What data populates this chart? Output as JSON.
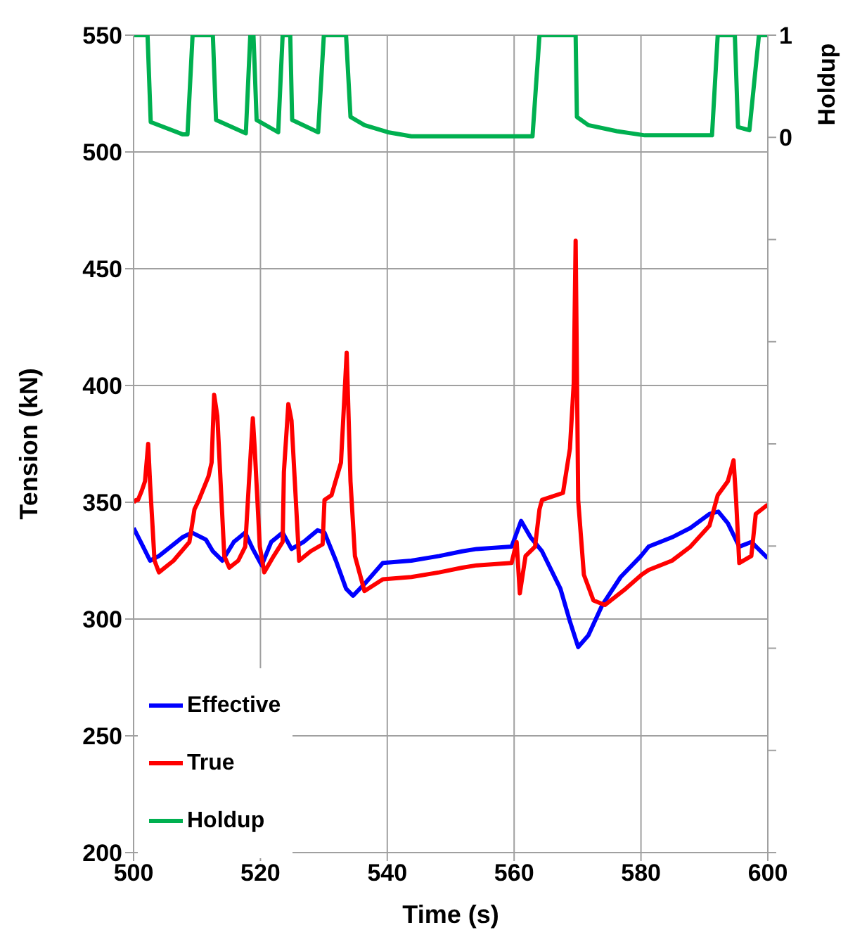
{
  "chart_data": {
    "type": "line",
    "xlabel": "Time (s)",
    "ylabel": "Tension (kN)",
    "y2label": "Holdup",
    "xlim": [
      500,
      600
    ],
    "xticks": [
      500,
      520,
      540,
      560,
      580,
      600
    ],
    "ylim": [
      200,
      550
    ],
    "yticks": [
      200,
      250,
      300,
      350,
      400,
      450,
      500,
      550
    ],
    "y2lim": [
      -7,
      1
    ],
    "y2ticks": [
      {
        "value": -7,
        "label": null
      },
      {
        "value": -6,
        "label": null
      },
      {
        "value": -5,
        "label": null
      },
      {
        "value": -4,
        "label": null
      },
      {
        "value": -3,
        "label": null
      },
      {
        "value": -2,
        "label": null
      },
      {
        "value": -1,
        "label": null
      },
      0,
      1
    ],
    "grid": true,
    "legend": "bottom left",
    "marker": "none",
    "line_style": "solid",
    "series": [
      {
        "name": "Effective",
        "color": "#0000ff",
        "x": [
          500,
          501.5,
          502.6,
          504,
          507.7,
          509.2,
          511.4,
          512.5,
          514,
          515.8,
          517.6,
          518.8,
          520.2,
          521.7,
          523.5,
          524.9,
          526.8,
          529,
          530.1,
          531.9,
          533.5,
          534.6,
          536.4,
          539.3,
          543.8,
          548.2,
          551.8,
          554.1,
          559.6,
          561.1,
          562.6,
          564.4,
          567.3,
          568.8,
          570.1,
          571.7,
          573.9,
          576.8,
          580,
          581.2,
          584.9,
          587.8,
          590.8,
          592.2,
          593.7,
          595.5,
          597.4,
          600
        ],
        "values": [
          339,
          331,
          325,
          327,
          335,
          337,
          334,
          329,
          325,
          333,
          337,
          330,
          323,
          333,
          337,
          330,
          333,
          338,
          337,
          325,
          313,
          310,
          315,
          324,
          325,
          327,
          329,
          330,
          331,
          342,
          335,
          329,
          313,
          299,
          288,
          293,
          306,
          318,
          327,
          331,
          335,
          339,
          345,
          346,
          341,
          331,
          333,
          326
        ]
      },
      {
        "name": "True",
        "color": "#ff0000",
        "x": [
          500,
          500.4,
          500.7,
          501.3,
          501.8,
          502.3,
          502.6,
          503.3,
          504,
          506.3,
          508.8,
          509.6,
          510.3,
          511.8,
          512.3,
          512.7,
          513.2,
          514.3,
          515.1,
          516.5,
          517.6,
          518.2,
          518.8,
          519.1,
          519.9,
          520.6,
          522.1,
          523.5,
          523.7,
          524.4,
          524.9,
          526.1,
          527.9,
          529.8,
          530.1,
          531.2,
          532.7,
          533.6,
          534.2,
          534.9,
          536.4,
          539.3,
          543.8,
          548.2,
          551.8,
          554.1,
          559.6,
          560.4,
          560.9,
          561.8,
          563.3,
          564,
          564.4,
          567.7,
          568.8,
          569.4,
          569.7,
          570.1,
          571,
          572.5,
          574.3,
          577.6,
          580.1,
          581.2,
          584.9,
          587.8,
          590.8,
          592.1,
          593.7,
          594.6,
          595,
          595.5,
          597.4,
          598.1,
          600
        ],
        "values": [
          350,
          351,
          351,
          355,
          359,
          375,
          358,
          325,
          320,
          325,
          333,
          347,
          351,
          361,
          367,
          396,
          387,
          327,
          322,
          325,
          331,
          359,
          386,
          373,
          331,
          320,
          327,
          333,
          363,
          392,
          385,
          325,
          329,
          332,
          351,
          353,
          367,
          414,
          359,
          327,
          312,
          317,
          318,
          320,
          322,
          323,
          324,
          333,
          311,
          327,
          331,
          347,
          351,
          354,
          373,
          401,
          462,
          351,
          319,
          308,
          306,
          313,
          319,
          321,
          325,
          331,
          340,
          353,
          359,
          368,
          351,
          324,
          327,
          345,
          349
        ]
      },
      {
        "name": "Holdup",
        "color": "#00b050",
        "axis": "y2",
        "x": [
          500,
          502.2,
          502.7,
          507.7,
          508.5,
          509.3,
          512.5,
          513,
          517.7,
          518.4,
          518.9,
          519.4,
          522.8,
          523.5,
          524.7,
          525,
          529.1,
          530,
          533.5,
          534.2,
          536.4,
          540.1,
          543.8,
          562.9,
          564,
          569.7,
          569.9,
          571.7,
          576.2,
          580.6,
          591.2,
          592.1,
          594.8,
          595.3,
          597.1,
          598.6,
          600
        ],
        "values": [
          1,
          1,
          0.15,
          0.03,
          0.03,
          1,
          1,
          0.17,
          0.04,
          1,
          1,
          0.17,
          0.05,
          1,
          1,
          0.17,
          0.05,
          1,
          1,
          0.2,
          0.12,
          0.05,
          0.01,
          0.01,
          1,
          1,
          0.2,
          0.12,
          0.06,
          0.02,
          0.02,
          1,
          1,
          0.1,
          0.07,
          1,
          1
        ]
      }
    ]
  }
}
